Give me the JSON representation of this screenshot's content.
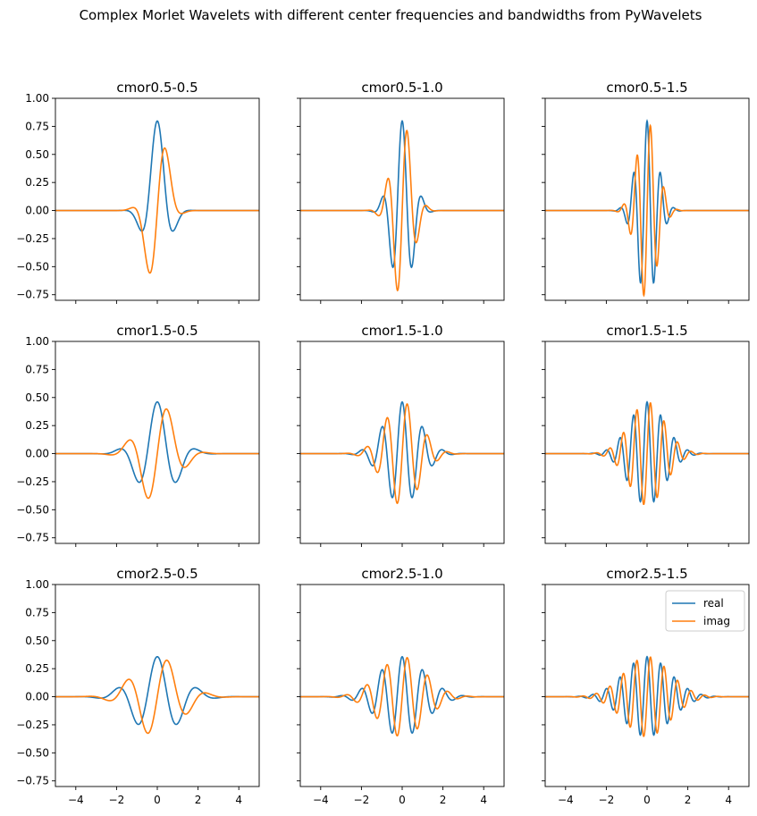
{
  "chart_data": {
    "type": "line",
    "title": "Complex Morlet Wavelets with different center frequencies and bandwidths from PyWavelets",
    "series_names": [
      "real",
      "imag"
    ],
    "colors": {
      "real": "#1f77b4",
      "imag": "#ff7f0e"
    },
    "xlim": [
      -5,
      5
    ],
    "ylim": [
      -0.8,
      1.0
    ],
    "xticks": [
      -4,
      -2,
      0,
      2,
      4
    ],
    "yticks": [
      -0.75,
      -0.5,
      -0.25,
      0.0,
      0.25,
      0.5,
      0.75,
      1.0
    ],
    "ytick_labels": [
      "−0.75",
      "−0.50",
      "−0.25",
      "0.00",
      "0.25",
      "0.50",
      "0.75",
      "1.00"
    ],
    "xtick_labels": [
      "−4",
      "−2",
      "0",
      "2",
      "4"
    ],
    "legend": {
      "location": "upper-right",
      "entries": [
        "real",
        "imag"
      ]
    },
    "subplots": [
      {
        "title": "cmor0.5-0.5",
        "bandwidth": 0.5,
        "center_frequency": 0.5
      },
      {
        "title": "cmor0.5-1.0",
        "bandwidth": 0.5,
        "center_frequency": 1.0
      },
      {
        "title": "cmor0.5-1.5",
        "bandwidth": 0.5,
        "center_frequency": 1.5
      },
      {
        "title": "cmor1.5-0.5",
        "bandwidth": 1.5,
        "center_frequency": 0.5
      },
      {
        "title": "cmor1.5-1.0",
        "bandwidth": 1.5,
        "center_frequency": 1.0
      },
      {
        "title": "cmor1.5-1.5",
        "bandwidth": 1.5,
        "center_frequency": 1.5
      },
      {
        "title": "cmor2.5-0.5",
        "bandwidth": 2.5,
        "center_frequency": 0.5
      },
      {
        "title": "cmor2.5-1.0",
        "bandwidth": 2.5,
        "center_frequency": 1.0
      },
      {
        "title": "cmor2.5-1.5",
        "bandwidth": 2.5,
        "center_frequency": 1.5
      }
    ]
  }
}
